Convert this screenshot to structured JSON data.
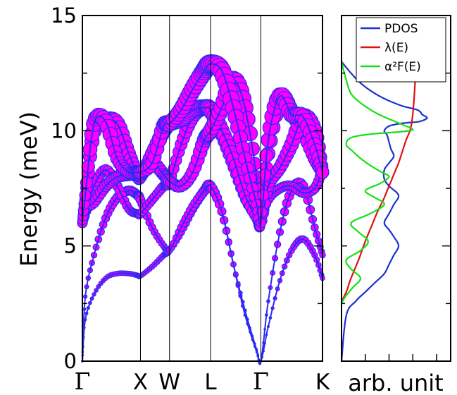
{
  "chart_data": [
    {
      "type": "line",
      "ylabel": "Energy (meV)",
      "ylim": [
        0,
        15
      ],
      "y_ticks": [
        "0",
        "5",
        "10",
        "15"
      ],
      "kpoints": [
        {
          "label": "Γ",
          "pos": 0.0
        },
        {
          "label": "X",
          "pos": 1.0
        },
        {
          "label": "W",
          "pos": 1.5
        },
        {
          "label": "L",
          "pos": 2.207
        },
        {
          "label": "Γ",
          "pos": 3.073
        },
        {
          "label": "K",
          "pos": 4.134
        }
      ],
      "line_color": "#2a2af5",
      "marker_color": "#ff00ff",
      "note": "phonon branches; marker size proportional to electron-phonon coupling",
      "series": [
        {
          "x": [
            0,
            0.05,
            0.2,
            0.4,
            0.6,
            0.8,
            0.95,
            1.0,
            1.2,
            1.4,
            1.5,
            1.7,
            1.9,
            2.1,
            2.207,
            2.4,
            2.6,
            2.8,
            3.0,
            3.073,
            3.2,
            3.4,
            3.6,
            3.8,
            4.0,
            4.134
          ],
          "y": [
            0,
            1.8,
            2.9,
            3.6,
            3.8,
            3.8,
            3.72,
            3.7,
            4.1,
            4.6,
            4.8,
            5.6,
            6.6,
            7.4,
            7.6,
            6.5,
            4.2,
            2.0,
            0.4,
            0,
            1.5,
            3.5,
            4.8,
            5.3,
            4.6,
            3.6
          ]
        },
        {
          "x": [
            0,
            0.05,
            0.2,
            0.4,
            0.6,
            0.8,
            0.95,
            1.0,
            1.2,
            1.4,
            1.5,
            1.7,
            1.9,
            2.1,
            2.207,
            2.4,
            2.6,
            2.8,
            3.0,
            3.073,
            3.2,
            3.4,
            3.6,
            3.8,
            4.0,
            4.134
          ],
          "y": [
            0,
            2.8,
            4.6,
            6.2,
            7.1,
            7.4,
            7.2,
            7.0,
            5.8,
            5.0,
            4.8,
            5.8,
            6.7,
            7.4,
            7.6,
            6.5,
            4.2,
            2.2,
            0.5,
            0,
            2.6,
            5.6,
            7.4,
            7.6,
            5.8,
            4.6
          ]
        },
        {
          "x": [
            0,
            0.05,
            0.2,
            0.4,
            0.6,
            0.8,
            0.95,
            1.0,
            1.2,
            1.4,
            1.5,
            1.7,
            1.9,
            2.1,
            2.207,
            2.4,
            2.6,
            2.8,
            3.0,
            3.073,
            3.2,
            3.4,
            3.6,
            3.8,
            4.0,
            4.134
          ],
          "y": [
            6.0,
            6.3,
            7.6,
            8.3,
            7.6,
            6.6,
            6.4,
            6.4,
            7.0,
            7.6,
            7.8,
            9.4,
            10.6,
            11.0,
            10.9,
            9.8,
            8.4,
            7.0,
            6.2,
            6.0,
            7.0,
            7.5,
            7.6,
            7.3,
            7.5,
            8.3
          ]
        },
        {
          "x": [
            0,
            0.05,
            0.2,
            0.4,
            0.6,
            0.8,
            0.95,
            1.0,
            1.2,
            1.4,
            1.5,
            1.7,
            1.9,
            2.1,
            2.207,
            2.4,
            2.6,
            2.8,
            3.0,
            3.073,
            3.2,
            3.4,
            3.6,
            3.8,
            4.0,
            4.134
          ],
          "y": [
            6.0,
            7.0,
            10.0,
            10.45,
            10.3,
            9.0,
            8.1,
            8.0,
            9.0,
            10.0,
            10.3,
            10.5,
            10.9,
            11.0,
            10.9,
            10.0,
            8.8,
            7.2,
            6.2,
            6.0,
            9.0,
            11.4,
            10.8,
            10.0,
            8.8,
            8.2
          ]
        },
        {
          "x": [
            0,
            0.05,
            0.2,
            0.4,
            0.6,
            0.8,
            0.95,
            1.0,
            1.2,
            1.4,
            1.5,
            1.7,
            1.9,
            2.1,
            2.207,
            2.4,
            2.6,
            2.8,
            3.0,
            3.073,
            3.2,
            3.4,
            3.6,
            3.8,
            4.0,
            4.134
          ],
          "y": [
            6.0,
            6.6,
            6.9,
            7.6,
            8.0,
            8.1,
            8.1,
            8.1,
            8.6,
            8.1,
            7.8,
            7.6,
            8.2,
            9.6,
            10.0,
            11.0,
            12.2,
            11.0,
            8.0,
            6.0,
            7.6,
            8.4,
            9.4,
            10.6,
            10.0,
            8.2
          ]
        },
        {
          "x": [
            0,
            0.05,
            0.2,
            0.4,
            0.6,
            0.8,
            0.95,
            1.0,
            1.2,
            1.4,
            1.5,
            1.7,
            1.9,
            2.1,
            2.207,
            2.4,
            2.6,
            2.8,
            3.0,
            3.073,
            3.2,
            3.4,
            3.6,
            3.8,
            4.0,
            4.134
          ],
          "y": [
            6.0,
            7.2,
            10.3,
            10.4,
            8.8,
            8.2,
            8.2,
            8.2,
            8.6,
            10.2,
            10.3,
            10.9,
            11.8,
            12.6,
            12.9,
            12.6,
            11.0,
            8.8,
            6.8,
            6.0,
            9.6,
            11.5,
            10.7,
            10.6,
            9.4,
            8.2
          ]
        }
      ]
    },
    {
      "type": "line",
      "xlabel": "arb. unit",
      "ylim": [
        0,
        15
      ],
      "legend_position": "top-right",
      "series": [
        {
          "name": "PDOS",
          "color": "#1a30d0",
          "x": [
            0,
            0.05,
            0.15,
            0.25,
            0.35,
            0.45,
            0.5,
            0.55,
            0.6,
            0.55,
            0.5,
            0.45,
            0.5,
            0.55,
            0.6,
            0.5,
            0.45,
            0.45,
            0.5,
            0.55,
            0.52,
            0.5,
            0.48,
            0.45,
            0.5,
            0.6,
            0.7,
            0.82,
            0.9,
            0.85,
            0.8,
            0.62,
            0.4,
            0.22,
            0.1,
            0.0
          ],
          "y": [
            0,
            2.0,
            2.6,
            3.0,
            3.4,
            3.8,
            4.2,
            4.6,
            5.0,
            5.4,
            5.7,
            6.0,
            6.4,
            6.8,
            7.2,
            7.6,
            7.9,
            8.3,
            8.6,
            8.9,
            9.2,
            9.5,
            9.8,
            10.0,
            10.2,
            10.3,
            10.35,
            10.4,
            10.55,
            10.7,
            10.9,
            11.1,
            11.5,
            12.0,
            12.5,
            13.0
          ]
        },
        {
          "name": "λ(E)",
          "color": "#e01010",
          "x": [
            0,
            0.05,
            0.1,
            0.18,
            0.25,
            0.32,
            0.38,
            0.44,
            0.5,
            0.55,
            0.6,
            0.64,
            0.68,
            0.72,
            0.74,
            0.76,
            0.78
          ],
          "y": [
            2.6,
            3.0,
            3.6,
            4.4,
            5.2,
            5.9,
            6.5,
            7.0,
            7.6,
            8.1,
            8.6,
            9.1,
            9.6,
            10.0,
            10.4,
            11.2,
            12.5
          ]
        },
        {
          "name": "α²F(E)",
          "color": "#18e018",
          "x": [
            0,
            0.04,
            0.12,
            0.2,
            0.1,
            0.05,
            0.2,
            0.28,
            0.18,
            0.1,
            0.3,
            0.45,
            0.35,
            0.25,
            0.4,
            0.5,
            0.42,
            0.3,
            0.2,
            0.12,
            0.05,
            0.1,
            0.3,
            0.6,
            0.75,
            0.62,
            0.35,
            0.12,
            0.05,
            0.0
          ],
          "y": [
            2.5,
            2.8,
            3.2,
            3.6,
            4.0,
            4.4,
            4.8,
            5.2,
            5.6,
            6.0,
            6.4,
            6.8,
            7.1,
            7.4,
            7.7,
            8.0,
            8.2,
            8.5,
            8.8,
            9.1,
            9.4,
            9.7,
            9.85,
            9.95,
            10.05,
            10.3,
            10.8,
            11.5,
            12.2,
            13.0
          ]
        }
      ],
      "legend": [
        {
          "label": "PDOS",
          "color": "#1a30d0"
        },
        {
          "label": "λ(E)",
          "color": "#e01010"
        },
        {
          "label": "α²F(E)",
          "color": "#18e018"
        }
      ]
    }
  ]
}
